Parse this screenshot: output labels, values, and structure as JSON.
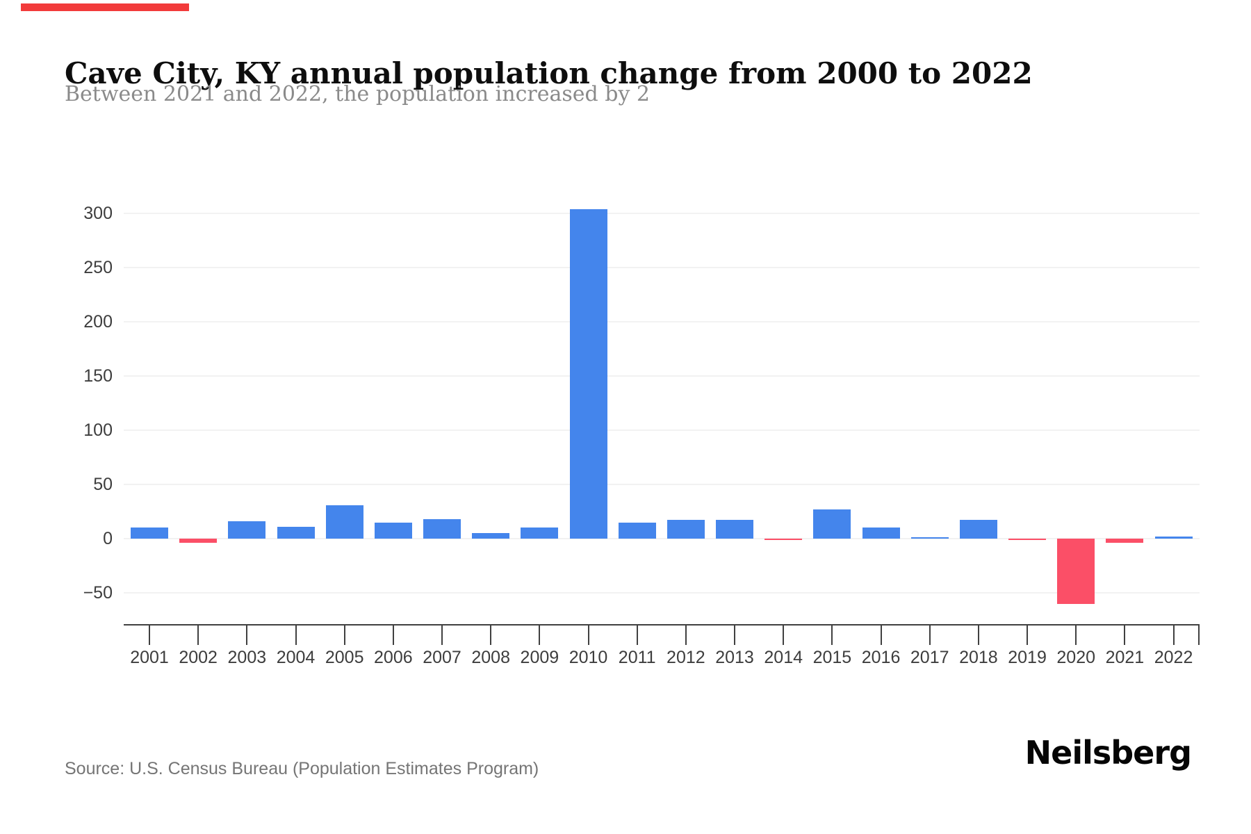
{
  "header": {
    "title": "Cave City, KY annual population change from 2000 to 2022",
    "subtitle": "Between 2021 and 2022, the population increased by 2"
  },
  "footer": {
    "source": "Source: U.S. Census Bureau (Population Estimates Program)",
    "brand": "Neilsberg"
  },
  "accent_color": "#f23b3b",
  "chart_data": {
    "type": "bar",
    "title": "Cave City, KY annual population change from 2000 to 2022",
    "subtitle": "Between 2021 and 2022, the population increased by 2",
    "xlabel": "",
    "ylabel": "",
    "categories": [
      "2001",
      "2002",
      "2003",
      "2004",
      "2005",
      "2006",
      "2007",
      "2008",
      "2009",
      "2010",
      "2011",
      "2012",
      "2013",
      "2014",
      "2015",
      "2016",
      "2017",
      "2018",
      "2019",
      "2020",
      "2021",
      "2022"
    ],
    "values": [
      10,
      -4,
      16,
      11,
      31,
      15,
      18,
      5,
      10,
      304,
      15,
      17,
      17,
      -1,
      27,
      10,
      1,
      17,
      -1,
      -60,
      -4,
      2
    ],
    "yticks": [
      300,
      250,
      200,
      150,
      100,
      50,
      0,
      -50
    ],
    "ylim": [
      -75,
      320
    ],
    "grid": true,
    "legend": false,
    "colors": {
      "positive": "#4485ec",
      "negative": "#fb4f67",
      "gridline": "#f2f2f2",
      "axis": "#404040",
      "tick_label": "#3d3d3d"
    }
  }
}
